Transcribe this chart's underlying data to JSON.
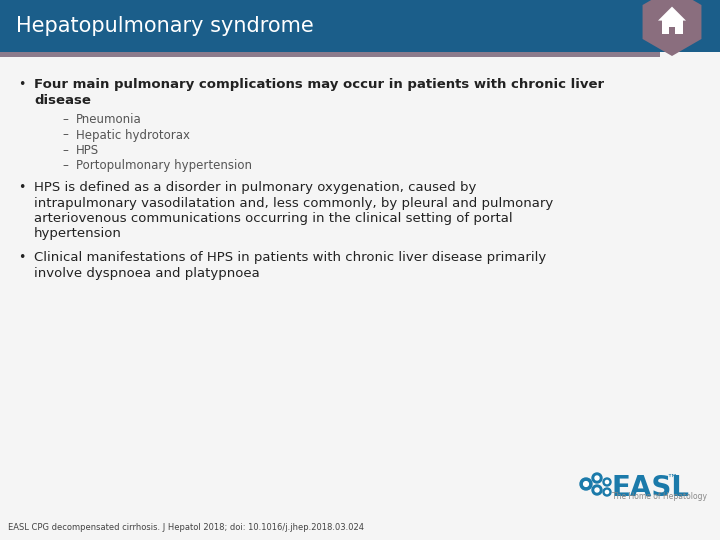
{
  "title": "Hepatopulmonary syndrome",
  "title_bg_color": "#1b5e8a",
  "title_text_color": "#ffffff",
  "accent_line_color": "#8c7b8c",
  "body_bg_color": "#f5f5f5",
  "text_color": "#222222",
  "sub_text_color": "#555555",
  "bullet1_line1": "Four main pulmonary complications may occur in patients with chronic liver",
  "bullet1_line2": "disease",
  "sub_bullets": [
    "Pneumonia",
    "Hepatic hydrotorax",
    "HPS",
    "Portopulmonary hypertension"
  ],
  "bullet2_lines": [
    "HPS is defined as a disorder in pulmonary oxygenation, caused by",
    "intrapulmonary vasodilatation and, less commonly, by pleural and pulmonary",
    "arteriovenous communications occurring in the clinical setting of portal",
    "hypertension"
  ],
  "bullet3_lines": [
    "Clinical manifestations of HPS in patients with chronic liver disease primarily",
    "involve dyspnoea and platypnoea"
  ],
  "footer_text": "EASL CPG decompensated cirrhosis. J Hepatol 2018; doi: 10.1016/j.jhep.2018.03.024",
  "footer_color": "#444444",
  "icon_bg_color": "#8a6e7e",
  "easl_blue": "#1b7aaa",
  "easl_text_color": "#1b7aaa"
}
